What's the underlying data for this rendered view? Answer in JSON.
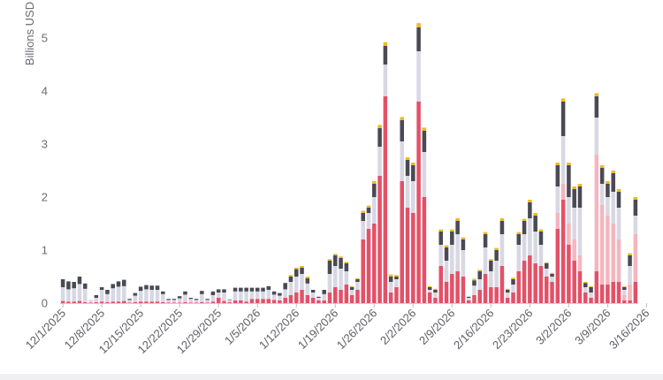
{
  "chart_data": {
    "type": "bar",
    "stacked": true,
    "ylabel": "Billions USD",
    "ylim": [
      0,
      5.3
    ],
    "yticks": [
      0,
      1,
      2,
      3,
      4,
      5
    ],
    "grid": false,
    "legend": "none",
    "start_date": "2025-12-01",
    "xtick_labels": [
      "12/1/2025",
      "12/8/2025",
      "12/15/2025",
      "12/22/2025",
      "12/29/2025",
      "1/5/2026",
      "1/12/2026",
      "1/19/2026",
      "1/26/2026",
      "2/2/2026",
      "2/9/2026",
      "2/16/2026",
      "2/23/2026",
      "3/2/2026",
      "3/9/2026",
      "3/16/2026"
    ],
    "series_colors": [
      "#e35168",
      "#f3b6bf",
      "#d8d7e4",
      "#4a4a55",
      "#f2b823"
    ],
    "series": [
      {
        "values": [
          0.04,
          0.03,
          0.03,
          0.04,
          0.02,
          0.01,
          0.02,
          0.03,
          0.02,
          0.03,
          0.03,
          0.04,
          0.01,
          0.02,
          0.03,
          0.03,
          0.03,
          0.03,
          0.02,
          0.01,
          0.01,
          0.01,
          0.02,
          0.01,
          0.01,
          0.02,
          0.01,
          0.03,
          0.1,
          0.04,
          0.02,
          0.05,
          0.05,
          0.03,
          0.08,
          0.08,
          0.08,
          0.08,
          0.06,
          0.05,
          0.1,
          0.15,
          0.2,
          0.25,
          0.15,
          0.1,
          0.05,
          0.05,
          0.2,
          0.3,
          0.25,
          0.35,
          0.15,
          0.25,
          1.2,
          1.4,
          1.5,
          2.4,
          3.9,
          0.2,
          0.3,
          2.3,
          1.8,
          1.7,
          3.8,
          2.0,
          0.2,
          0.1,
          0.7,
          0.4,
          0.55,
          0.6,
          0.5,
          0.05,
          0.15,
          0.25,
          0.55,
          0.3,
          0.3,
          0.7,
          0.1,
          0.2,
          0.6,
          0.8,
          0.9,
          0.75,
          0.7,
          0.5,
          0.4,
          1.4,
          1.95,
          1.1,
          0.8,
          0.6,
          0.2,
          0.1,
          0.6,
          0.35,
          0.35,
          0.4,
          0.4,
          0.05,
          0.05,
          0.4
        ]
      },
      {
        "values": [
          0.0,
          0.0,
          0.0,
          0.0,
          0.0,
          0.0,
          0.0,
          0.0,
          0.0,
          0.0,
          0.0,
          0.0,
          0.0,
          0.0,
          0.0,
          0.0,
          0.0,
          0.0,
          0.0,
          0.0,
          0.0,
          0.0,
          0.0,
          0.0,
          0.0,
          0.0,
          0.0,
          0.0,
          0.0,
          0.0,
          0.0,
          0.0,
          0.0,
          0.0,
          0.0,
          0.0,
          0.0,
          0.0,
          0.0,
          0.0,
          0.0,
          0.0,
          0.0,
          0.0,
          0.0,
          0.0,
          0.0,
          0.0,
          0.0,
          0.0,
          0.0,
          0.0,
          0.0,
          0.0,
          0.0,
          0.0,
          0.0,
          0.0,
          0.0,
          0.0,
          0.0,
          0.0,
          0.0,
          0.0,
          0.0,
          0.0,
          0.0,
          0.0,
          0.0,
          0.0,
          0.0,
          0.0,
          0.0,
          0.0,
          0.0,
          0.0,
          0.0,
          0.0,
          0.0,
          0.0,
          0.0,
          0.0,
          0.0,
          0.0,
          0.0,
          0.0,
          0.0,
          0.0,
          0.0,
          0.3,
          0.3,
          0.4,
          0.4,
          0.3,
          0.0,
          0.0,
          2.2,
          1.5,
          1.3,
          1.1,
          0.8,
          0.1,
          0.3,
          0.9
        ]
      },
      {
        "values": [
          0.26,
          0.23,
          0.25,
          0.32,
          0.25,
          0.05,
          0.08,
          0.22,
          0.15,
          0.25,
          0.28,
          0.28,
          0.05,
          0.12,
          0.2,
          0.23,
          0.22,
          0.22,
          0.15,
          0.05,
          0.05,
          0.08,
          0.14,
          0.07,
          0.05,
          0.15,
          0.05,
          0.12,
          0.1,
          0.16,
          0.04,
          0.17,
          0.17,
          0.19,
          0.14,
          0.14,
          0.14,
          0.17,
          0.1,
          0.09,
          0.16,
          0.25,
          0.3,
          0.3,
          0.22,
          0.1,
          0.05,
          0.12,
          0.35,
          0.4,
          0.4,
          0.25,
          0.1,
          0.15,
          0.35,
          0.3,
          0.5,
          0.55,
          0.6,
          0.2,
          0.15,
          0.75,
          0.6,
          0.6,
          0.95,
          0.85,
          0.05,
          0.1,
          0.4,
          0.4,
          0.55,
          0.7,
          0.5,
          0.05,
          0.18,
          0.2,
          0.5,
          0.3,
          0.5,
          0.6,
          0.1,
          0.15,
          0.5,
          0.5,
          0.7,
          0.6,
          0.4,
          0.15,
          0.1,
          0.5,
          0.9,
          0.5,
          0.6,
          0.9,
          0.1,
          0.1,
          0.7,
          0.4,
          0.35,
          0.6,
          0.6,
          0.1,
          0.35,
          0.35
        ]
      },
      {
        "values": [
          0.15,
          0.15,
          0.12,
          0.14,
          0.1,
          0.0,
          0.05,
          0.05,
          0.08,
          0.08,
          0.1,
          0.12,
          0.02,
          0.05,
          0.08,
          0.08,
          0.08,
          0.08,
          0.05,
          0.02,
          0.02,
          0.04,
          0.06,
          0.02,
          0.02,
          0.06,
          0.02,
          0.07,
          0.06,
          0.06,
          0.01,
          0.07,
          0.07,
          0.07,
          0.07,
          0.07,
          0.07,
          0.07,
          0.06,
          0.05,
          0.12,
          0.1,
          0.14,
          0.12,
          0.1,
          0.05,
          0.02,
          0.08,
          0.25,
          0.2,
          0.2,
          0.15,
          0.05,
          0.05,
          0.15,
          0.1,
          0.25,
          0.35,
          0.35,
          0.1,
          0.05,
          0.4,
          0.3,
          0.3,
          0.45,
          0.4,
          0.05,
          0.05,
          0.25,
          0.25,
          0.25,
          0.25,
          0.2,
          0.02,
          0.1,
          0.15,
          0.25,
          0.2,
          0.2,
          0.25,
          0.05,
          0.1,
          0.2,
          0.25,
          0.3,
          0.3,
          0.25,
          0.1,
          0.05,
          0.4,
          0.65,
          0.6,
          0.35,
          0.4,
          0.08,
          0.1,
          0.4,
          0.3,
          0.25,
          0.35,
          0.3,
          0.05,
          0.2,
          0.3
        ]
      },
      {
        "values": [
          0.0,
          0.0,
          0.0,
          0.0,
          0.0,
          0.0,
          0.0,
          0.0,
          0.0,
          0.0,
          0.0,
          0.0,
          0.0,
          0.0,
          0.0,
          0.0,
          0.0,
          0.0,
          0.0,
          0.0,
          0.0,
          0.0,
          0.0,
          0.0,
          0.0,
          0.0,
          0.0,
          0.0,
          0.0,
          0.0,
          0.0,
          0.0,
          0.0,
          0.0,
          0.0,
          0.0,
          0.0,
          0.0,
          0.0,
          0.0,
          0.0,
          0.03,
          0.03,
          0.03,
          0.03,
          0.0,
          0.0,
          0.0,
          0.03,
          0.03,
          0.03,
          0.03,
          0.02,
          0.02,
          0.04,
          0.04,
          0.05,
          0.06,
          0.07,
          0.04,
          0.03,
          0.06,
          0.05,
          0.05,
          0.08,
          0.06,
          0.02,
          0.02,
          0.04,
          0.04,
          0.04,
          0.05,
          0.04,
          0.0,
          0.03,
          0.03,
          0.04,
          0.03,
          0.04,
          0.05,
          0.02,
          0.03,
          0.04,
          0.04,
          0.05,
          0.05,
          0.04,
          0.02,
          0.02,
          0.05,
          0.06,
          0.05,
          0.05,
          0.05,
          0.02,
          0.02,
          0.06,
          0.05,
          0.05,
          0.05,
          0.05,
          0.02,
          0.04,
          0.05
        ]
      }
    ]
  }
}
